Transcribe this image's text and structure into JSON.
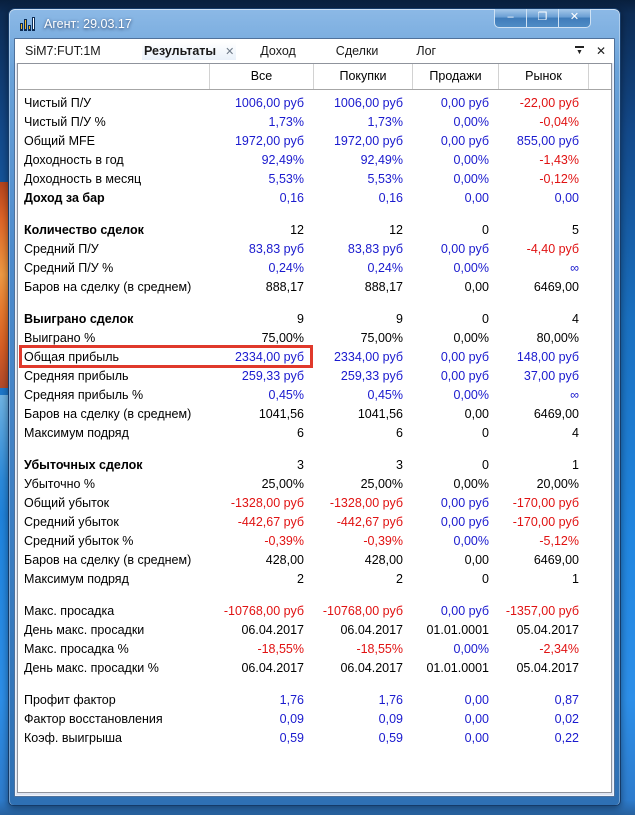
{
  "window": {
    "title": "Агент: 29.03.17",
    "buttons": [
      {
        "name": "minimize",
        "glyph": "–"
      },
      {
        "name": "maximize",
        "glyph": "❐"
      },
      {
        "name": "close",
        "glyph": "✕"
      }
    ]
  },
  "tabbar": {
    "instrument": "SiM7:FUT:1M",
    "tabs": [
      {
        "label": "Результаты",
        "active": true
      },
      {
        "label": "Доход",
        "active": false
      },
      {
        "label": "Сделки",
        "active": false
      },
      {
        "label": "Лог",
        "active": false
      }
    ],
    "tab_close_glyph": "✕",
    "menu_glyph": "▼",
    "close_glyph": "✕"
  },
  "colors": {
    "value_blue": "#1a1ace",
    "value_red": "#e01212",
    "value_black": "#000000",
    "highlight_border": "#e0392b"
  },
  "table": {
    "columns": [
      "",
      "Все",
      "Покупки",
      "Продажи",
      "Рынок",
      ""
    ],
    "sections": [
      {
        "rows": [
          {
            "label": "Чистый П/У",
            "bold": false,
            "values": [
              {
                "text": "1006,00 руб",
                "color": "blue"
              },
              {
                "text": "1006,00 руб",
                "color": "blue"
              },
              {
                "text": "0,00 руб",
                "color": "blue"
              },
              {
                "text": "-22,00 руб",
                "color": "red"
              }
            ]
          },
          {
            "label": "Чистый П/У %",
            "bold": false,
            "values": [
              {
                "text": "1,73%",
                "color": "blue"
              },
              {
                "text": "1,73%",
                "color": "blue"
              },
              {
                "text": "0,00%",
                "color": "blue"
              },
              {
                "text": "-0,04%",
                "color": "red"
              }
            ]
          },
          {
            "label": "Общий MFE",
            "bold": false,
            "values": [
              {
                "text": "1972,00 руб",
                "color": "blue"
              },
              {
                "text": "1972,00 руб",
                "color": "blue"
              },
              {
                "text": "0,00 руб",
                "color": "blue"
              },
              {
                "text": "855,00 руб",
                "color": "blue"
              }
            ]
          },
          {
            "label": "Доходность в год",
            "bold": false,
            "values": [
              {
                "text": "92,49%",
                "color": "blue"
              },
              {
                "text": "92,49%",
                "color": "blue"
              },
              {
                "text": "0,00%",
                "color": "blue"
              },
              {
                "text": "-1,43%",
                "color": "red"
              }
            ]
          },
          {
            "label": "Доходность в месяц",
            "bold": false,
            "values": [
              {
                "text": "5,53%",
                "color": "blue"
              },
              {
                "text": "5,53%",
                "color": "blue"
              },
              {
                "text": "0,00%",
                "color": "blue"
              },
              {
                "text": "-0,12%",
                "color": "red"
              }
            ]
          },
          {
            "label": "Доход за бар",
            "bold": true,
            "values": [
              {
                "text": "0,16",
                "color": "blue"
              },
              {
                "text": "0,16",
                "color": "blue"
              },
              {
                "text": "0,00",
                "color": "blue"
              },
              {
                "text": "0,00",
                "color": "blue"
              }
            ]
          }
        ]
      },
      {
        "rows": [
          {
            "label": "Количество сделок",
            "bold": true,
            "values": [
              {
                "text": "12",
                "color": "black"
              },
              {
                "text": "12",
                "color": "black"
              },
              {
                "text": "0",
                "color": "black"
              },
              {
                "text": "5",
                "color": "black"
              }
            ]
          },
          {
            "label": "Средний П/У",
            "bold": false,
            "values": [
              {
                "text": "83,83 руб",
                "color": "blue"
              },
              {
                "text": "83,83 руб",
                "color": "blue"
              },
              {
                "text": "0,00 руб",
                "color": "blue"
              },
              {
                "text": "-4,40 руб",
                "color": "red"
              }
            ]
          },
          {
            "label": "Средний П/У %",
            "bold": false,
            "values": [
              {
                "text": "0,24%",
                "color": "blue"
              },
              {
                "text": "0,24%",
                "color": "blue"
              },
              {
                "text": "0,00%",
                "color": "blue"
              },
              {
                "text": "∞",
                "color": "blue"
              }
            ]
          },
          {
            "label": "Баров на сделку (в среднем)",
            "bold": false,
            "values": [
              {
                "text": "888,17",
                "color": "black"
              },
              {
                "text": "888,17",
                "color": "black"
              },
              {
                "text": "0,00",
                "color": "black"
              },
              {
                "text": "6469,00",
                "color": "black"
              }
            ]
          }
        ]
      },
      {
        "rows": [
          {
            "label": "Выиграно сделок",
            "bold": true,
            "values": [
              {
                "text": "9",
                "color": "black"
              },
              {
                "text": "9",
                "color": "black"
              },
              {
                "text": "0",
                "color": "black"
              },
              {
                "text": "4",
                "color": "black"
              }
            ]
          },
          {
            "label": "Выиграно %",
            "bold": false,
            "values": [
              {
                "text": "75,00%",
                "color": "black"
              },
              {
                "text": "75,00%",
                "color": "black"
              },
              {
                "text": "0,00%",
                "color": "black"
              },
              {
                "text": "80,00%",
                "color": "black"
              }
            ]
          },
          {
            "label": "Общая прибыль",
            "bold": false,
            "highlight": true,
            "values": [
              {
                "text": "2334,00 руб",
                "color": "blue"
              },
              {
                "text": "2334,00 руб",
                "color": "blue"
              },
              {
                "text": "0,00 руб",
                "color": "blue"
              },
              {
                "text": "148,00 руб",
                "color": "blue"
              }
            ]
          },
          {
            "label": "Средняя прибыль",
            "bold": false,
            "values": [
              {
                "text": "259,33 руб",
                "color": "blue"
              },
              {
                "text": "259,33 руб",
                "color": "blue"
              },
              {
                "text": "0,00 руб",
                "color": "blue"
              },
              {
                "text": "37,00 руб",
                "color": "blue"
              }
            ]
          },
          {
            "label": "Средняя прибыль %",
            "bold": false,
            "values": [
              {
                "text": "0,45%",
                "color": "blue"
              },
              {
                "text": "0,45%",
                "color": "blue"
              },
              {
                "text": "0,00%",
                "color": "blue"
              },
              {
                "text": "∞",
                "color": "blue"
              }
            ]
          },
          {
            "label": "Баров на сделку (в среднем)",
            "bold": false,
            "values": [
              {
                "text": "1041,56",
                "color": "black"
              },
              {
                "text": "1041,56",
                "color": "black"
              },
              {
                "text": "0,00",
                "color": "black"
              },
              {
                "text": "6469,00",
                "color": "black"
              }
            ]
          },
          {
            "label": "Максимум подряд",
            "bold": false,
            "values": [
              {
                "text": "6",
                "color": "black"
              },
              {
                "text": "6",
                "color": "black"
              },
              {
                "text": "0",
                "color": "black"
              },
              {
                "text": "4",
                "color": "black"
              }
            ]
          }
        ]
      },
      {
        "rows": [
          {
            "label": "Убыточных сделок",
            "bold": true,
            "values": [
              {
                "text": "3",
                "color": "black"
              },
              {
                "text": "3",
                "color": "black"
              },
              {
                "text": "0",
                "color": "black"
              },
              {
                "text": "1",
                "color": "black"
              }
            ]
          },
          {
            "label": "Убыточно %",
            "bold": false,
            "values": [
              {
                "text": "25,00%",
                "color": "black"
              },
              {
                "text": "25,00%",
                "color": "black"
              },
              {
                "text": "0,00%",
                "color": "black"
              },
              {
                "text": "20,00%",
                "color": "black"
              }
            ]
          },
          {
            "label": "Общий убыток",
            "bold": false,
            "values": [
              {
                "text": "-1328,00 руб",
                "color": "red"
              },
              {
                "text": "-1328,00 руб",
                "color": "red"
              },
              {
                "text": "0,00 руб",
                "color": "blue"
              },
              {
                "text": "-170,00 руб",
                "color": "red"
              }
            ]
          },
          {
            "label": "Средний убыток",
            "bold": false,
            "values": [
              {
                "text": "-442,67 руб",
                "color": "red"
              },
              {
                "text": "-442,67 руб",
                "color": "red"
              },
              {
                "text": "0,00 руб",
                "color": "blue"
              },
              {
                "text": "-170,00 руб",
                "color": "red"
              }
            ]
          },
          {
            "label": "Средний убыток %",
            "bold": false,
            "values": [
              {
                "text": "-0,39%",
                "color": "red"
              },
              {
                "text": "-0,39%",
                "color": "red"
              },
              {
                "text": "0,00%",
                "color": "blue"
              },
              {
                "text": "-5,12%",
                "color": "red"
              }
            ]
          },
          {
            "label": "Баров на сделку (в среднем)",
            "bold": false,
            "values": [
              {
                "text": "428,00",
                "color": "black"
              },
              {
                "text": "428,00",
                "color": "black"
              },
              {
                "text": "0,00",
                "color": "black"
              },
              {
                "text": "6469,00",
                "color": "black"
              }
            ]
          },
          {
            "label": "Максимум подряд",
            "bold": false,
            "values": [
              {
                "text": "2",
                "color": "black"
              },
              {
                "text": "2",
                "color": "black"
              },
              {
                "text": "0",
                "color": "black"
              },
              {
                "text": "1",
                "color": "black"
              }
            ]
          }
        ]
      },
      {
        "rows": [
          {
            "label": "Макс. просадка",
            "bold": false,
            "values": [
              {
                "text": "-10768,00 руб",
                "color": "red"
              },
              {
                "text": "-10768,00 руб",
                "color": "red"
              },
              {
                "text": "0,00 руб",
                "color": "blue"
              },
              {
                "text": "-1357,00 руб",
                "color": "red"
              }
            ]
          },
          {
            "label": "День макс. просадки",
            "bold": false,
            "values": [
              {
                "text": "06.04.2017",
                "color": "black"
              },
              {
                "text": "06.04.2017",
                "color": "black"
              },
              {
                "text": "01.01.0001",
                "color": "black"
              },
              {
                "text": "05.04.2017",
                "color": "black"
              }
            ]
          },
          {
            "label": "Макс. просадка %",
            "bold": false,
            "values": [
              {
                "text": "-18,55%",
                "color": "red"
              },
              {
                "text": "-18,55%",
                "color": "red"
              },
              {
                "text": "0,00%",
                "color": "blue"
              },
              {
                "text": "-2,34%",
                "color": "red"
              }
            ]
          },
          {
            "label": "День макс. просадки %",
            "bold": false,
            "values": [
              {
                "text": "06.04.2017",
                "color": "black"
              },
              {
                "text": "06.04.2017",
                "color": "black"
              },
              {
                "text": "01.01.0001",
                "color": "black"
              },
              {
                "text": "05.04.2017",
                "color": "black"
              }
            ]
          }
        ]
      },
      {
        "rows": [
          {
            "label": "Профит фактор",
            "bold": false,
            "values": [
              {
                "text": "1,76",
                "color": "blue"
              },
              {
                "text": "1,76",
                "color": "blue"
              },
              {
                "text": "0,00",
                "color": "blue"
              },
              {
                "text": "0,87",
                "color": "blue"
              }
            ]
          },
          {
            "label": "Фактор восстановления",
            "bold": false,
            "values": [
              {
                "text": "0,09",
                "color": "blue"
              },
              {
                "text": "0,09",
                "color": "blue"
              },
              {
                "text": "0,00",
                "color": "blue"
              },
              {
                "text": "0,02",
                "color": "blue"
              }
            ]
          },
          {
            "label": "Коэф. выигрыша",
            "bold": false,
            "values": [
              {
                "text": "0,59",
                "color": "blue"
              },
              {
                "text": "0,59",
                "color": "blue"
              },
              {
                "text": "0,00",
                "color": "blue"
              },
              {
                "text": "0,22",
                "color": "blue"
              }
            ]
          }
        ]
      }
    ]
  }
}
